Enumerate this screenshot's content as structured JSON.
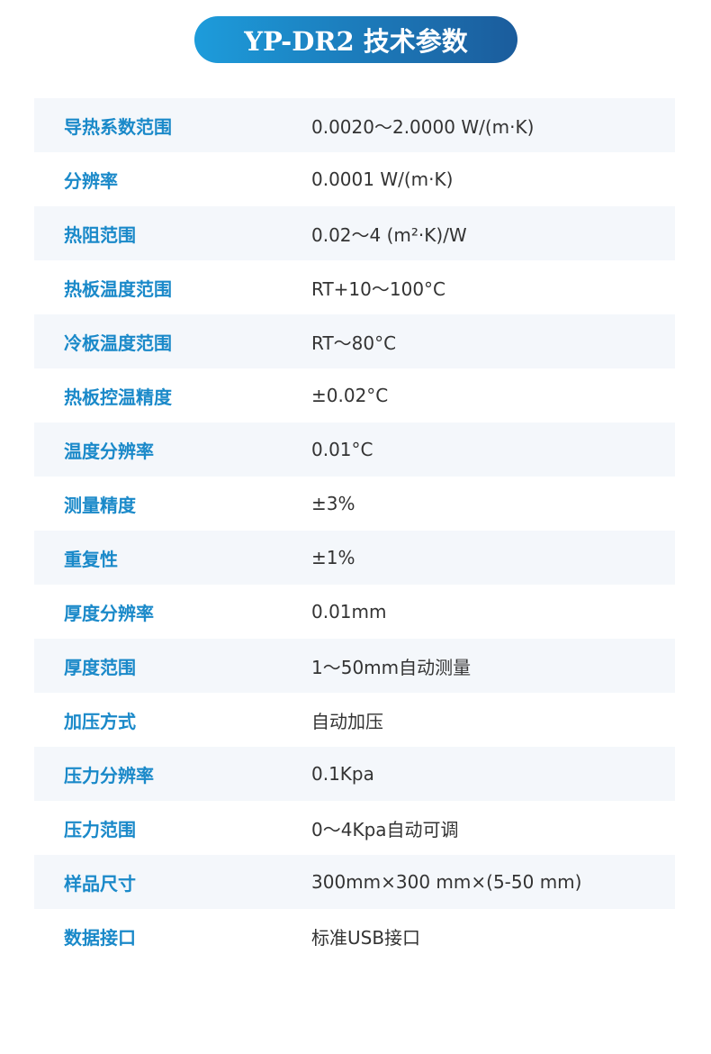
{
  "title": "YP-DR2 技术参数",
  "rows": [
    {
      "label": "导热系数范围",
      "value": "0.0020～2.0000 W/(m·K)"
    },
    {
      "label": "分辨率",
      "value": "0.0001 W/(m·K)"
    },
    {
      "label": "热阻范围",
      "value": "0.02～4 (m²·K)/W"
    },
    {
      "label": "热板温度范围",
      "value": "RT+10～100°C"
    },
    {
      "label": "冷板温度范围",
      "value": "RT～80°C"
    },
    {
      "label": "热板控温精度",
      "value": "±0.02°C"
    },
    {
      "label": "温度分辨率",
      "value": "0.01°C"
    },
    {
      "label": "测量精度",
      "value": "±3%"
    },
    {
      "label": "重复性",
      "value": "±1%"
    },
    {
      "label": "厚度分辨率",
      "value": "0.01mm"
    },
    {
      "label": "厚度范围",
      "value": "1～50mm自动测量"
    },
    {
      "label": "加压方式",
      "value": "自动加压"
    },
    {
      "label": "压力分辨率",
      "value": "0.1Kpa"
    },
    {
      "label": "压力范围",
      "value": "0～4Kpa自动可调"
    },
    {
      "label": "样品尺寸",
      "value": "300mm×300 mm×(5-50 mm)"
    },
    {
      "label": "数据接口",
      "value": "标准USB接口"
    }
  ]
}
